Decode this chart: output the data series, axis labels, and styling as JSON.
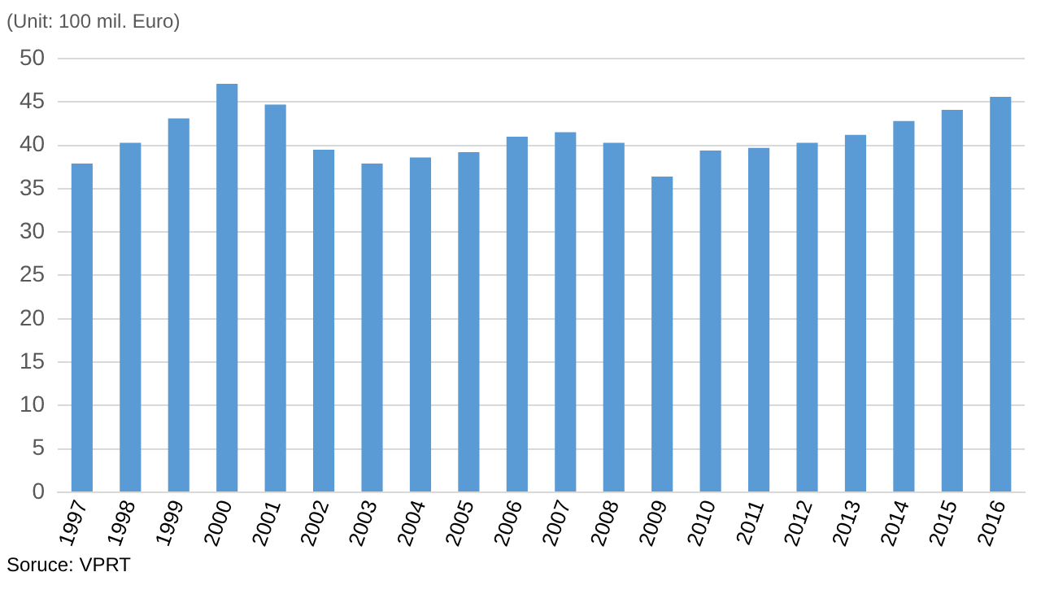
{
  "chart_data": {
    "type": "bar",
    "ylabel": "(Unit: 100 mil. Euro)",
    "annotations": [
      "Soruce: VPRT"
    ],
    "categories": [
      "1997",
      "1998",
      "1999",
      "2000",
      "2001",
      "2002",
      "2003",
      "2004",
      "2005",
      "2006",
      "2007",
      "2008",
      "2009",
      "2010",
      "2011",
      "2012",
      "2013",
      "2014",
      "2015",
      "2016"
    ],
    "values": [
      37.9,
      40.3,
      43.1,
      47.1,
      44.7,
      39.5,
      37.9,
      38.6,
      39.2,
      41.0,
      41.5,
      40.3,
      36.4,
      39.4,
      39.7,
      40.3,
      41.2,
      42.8,
      44.1,
      45.6
    ],
    "color": "#5b9bd5",
    "ylim": [
      0,
      50
    ],
    "yticks": [
      0,
      5,
      10,
      15,
      20,
      25,
      30,
      35,
      40,
      45,
      50
    ],
    "grid": "y",
    "legend": false
  }
}
